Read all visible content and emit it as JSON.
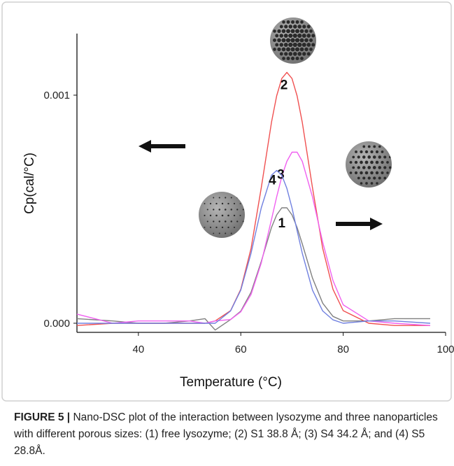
{
  "chart_data": {
    "type": "line",
    "xlabel": "Temperature (°C)",
    "ylabel": "Cp(cal/°C)",
    "x": [
      28,
      35,
      40,
      45,
      50,
      53,
      55,
      58,
      60,
      62,
      64,
      66,
      67,
      68,
      69,
      70,
      71,
      72,
      74,
      76,
      78,
      80,
      85,
      90,
      97
    ],
    "xlim": [
      28,
      100
    ],
    "xticks": [
      40,
      60,
      80,
      100
    ],
    "ylim": [
      -4e-05,
      0.00127
    ],
    "yticks": [
      {
        "value": 0,
        "label": "0.000"
      },
      {
        "value": 0.001,
        "label": "0.001"
      }
    ],
    "series": [
      {
        "name": "1",
        "color": "#808080",
        "values": [
          2e-05,
          1e-05,
          0.0,
          0.0,
          1e-05,
          2e-05,
          -3e-05,
          1.6e-05,
          5.3e-05,
          0.000136,
          0.000271,
          0.00042,
          0.000475,
          0.000506,
          0.000506,
          0.000475,
          0.00042,
          0.000348,
          0.000198,
          8.8e-05,
          3e-05,
          1e-05,
          1e-05,
          2e-05,
          2e-05
        ]
      },
      {
        "name": "2",
        "color": "#f05050",
        "values": [
          -1e-05,
          0.0,
          0.0,
          0.0,
          0.0,
          0.0,
          1e-05,
          5.5e-05,
          0.000149,
          0.000328,
          0.000594,
          0.000881,
          0.000997,
          0.001073,
          0.0011,
          0.001073,
          0.000997,
          0.000881,
          0.000594,
          0.000328,
          0.000149,
          5.5e-05,
          0.0,
          -1e-05,
          -1e-05
        ]
      },
      {
        "name": "3",
        "color": "#f060f0",
        "values": [
          4e-05,
          0.0,
          1e-05,
          1e-05,
          1e-05,
          0.0,
          1e-05,
          1.6e-05,
          5e-05,
          0.000126,
          0.000264,
          0.000455,
          0.000554,
          0.000643,
          0.00071,
          0.00075,
          0.00075,
          0.00071,
          0.000554,
          0.000355,
          0.000187,
          8.1e-05,
          1e-05,
          0.0,
          -1e-05
        ]
      },
      {
        "name": "4",
        "color": "#7080e0",
        "values": [
          0.0,
          0.0,
          0.0,
          0.0,
          0.0,
          0.0,
          0.0,
          5.4e-05,
          0.000145,
          0.000307,
          0.000506,
          0.000649,
          0.00067,
          0.000649,
          0.000591,
          0.000506,
          0.000406,
          0.000307,
          0.000145,
          5.4e-05,
          1.5e-05,
          0.0,
          1e-05,
          1e-05,
          0.0
        ]
      }
    ]
  },
  "caption": {
    "label": "FIGURE 5 |",
    "text": " Nano-DSC plot of the interaction between lysozyme and three nanoparticles with different porous sizes: (1) free lysozyme; (2) S1 38.8 Å; (3) S4 34.2 Å; and (4) S5 28.8Å."
  }
}
